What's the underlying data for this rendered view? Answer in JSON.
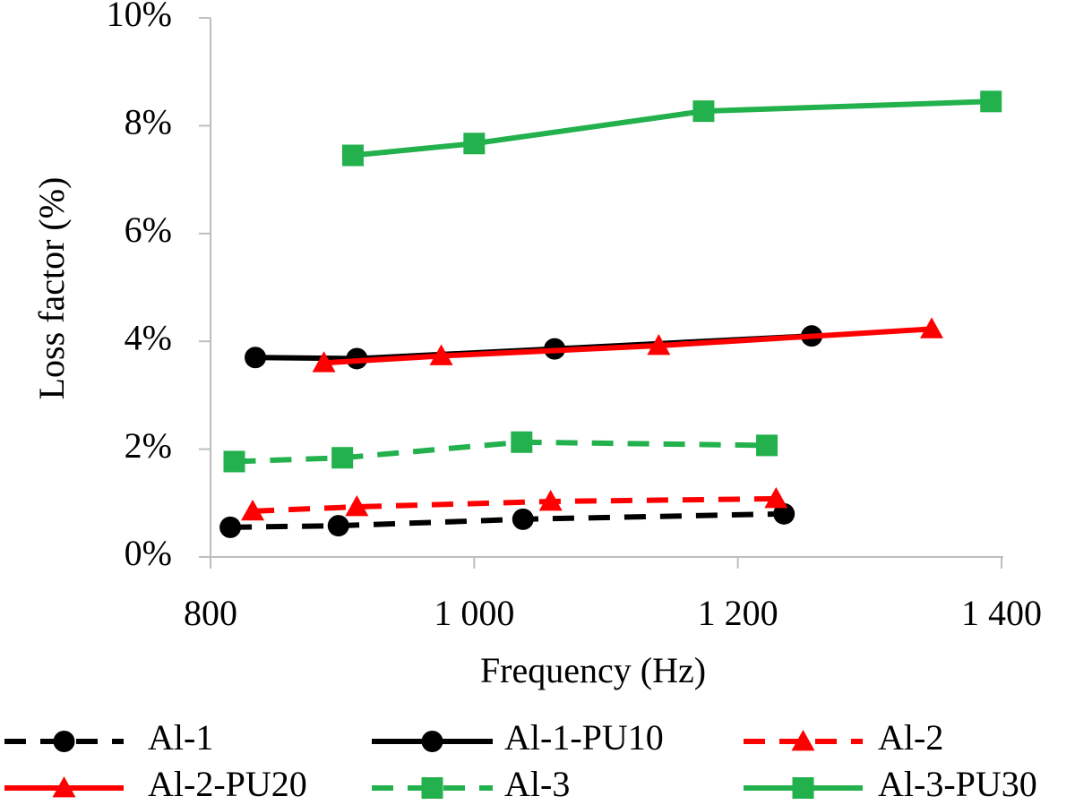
{
  "chart_data": {
    "type": "line",
    "xlabel": "Frequency (Hz)",
    "ylabel": "Loss factor (%)",
    "xlim": [
      800,
      1400
    ],
    "ylim": [
      0,
      10
    ],
    "x_ticks": [
      800,
      1000,
      1200,
      1400
    ],
    "x_tick_labels": [
      "800",
      "1 000",
      "1 200",
      "1 400"
    ],
    "y_ticks": [
      0,
      2,
      4,
      6,
      8,
      10
    ],
    "y_tick_labels": [
      "0%",
      "2%",
      "4%",
      "6%",
      "8%",
      "10%"
    ],
    "grid": false,
    "legend_position": "bottom",
    "series": [
      {
        "name": "Al-1",
        "color": "#000000",
        "dash": true,
        "marker": "circle",
        "x": [
          815,
          897,
          1037,
          1235
        ],
        "y": [
          0.55,
          0.58,
          0.7,
          0.8
        ]
      },
      {
        "name": "Al-1-PU10",
        "color": "#000000",
        "dash": false,
        "marker": "circle",
        "x": [
          834,
          911,
          1061,
          1256
        ],
        "y": [
          3.7,
          3.68,
          3.86,
          4.1
        ]
      },
      {
        "name": "Al-2",
        "color": "#ff0000",
        "dash": true,
        "marker": "triangle",
        "x": [
          832,
          911,
          1058,
          1229
        ],
        "y": [
          0.85,
          0.93,
          1.03,
          1.08
        ]
      },
      {
        "name": "Al-2-PU20",
        "color": "#ff0000",
        "dash": false,
        "marker": "triangle",
        "x": [
          886,
          975,
          1140,
          1347
        ],
        "y": [
          3.6,
          3.73,
          3.92,
          4.23
        ]
      },
      {
        "name": "Al-3",
        "color": "#22b14c",
        "dash": true,
        "marker": "square",
        "x": [
          818,
          900,
          1036,
          1222
        ],
        "y": [
          1.77,
          1.84,
          2.13,
          2.07
        ]
      },
      {
        "name": "Al-3-PU30",
        "color": "#22b14c",
        "dash": false,
        "marker": "square",
        "x": [
          908,
          1000,
          1174,
          1392
        ],
        "y": [
          7.45,
          7.67,
          8.27,
          8.45
        ]
      }
    ]
  }
}
